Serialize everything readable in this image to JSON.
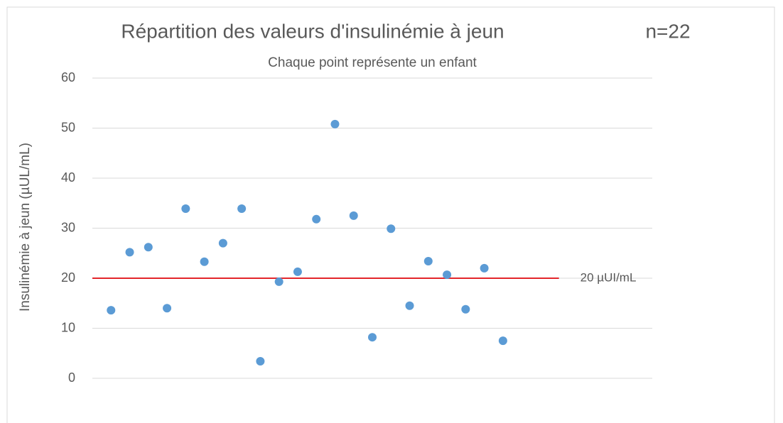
{
  "chart_data": {
    "type": "scatter",
    "title": "Répartition des valeurs d'insulinémie à jeun",
    "title_note": "n=22",
    "subtitle": "Chaque point représente un enfant",
    "y_label": "Insulinémie à jeun (µUL/mL)",
    "x": [
      1,
      2,
      3,
      4,
      5,
      6,
      7,
      8,
      9,
      10,
      11,
      12,
      13,
      14,
      15,
      16,
      17,
      18,
      19,
      20,
      21,
      22
    ],
    "series": [
      {
        "color": "#5b9bd5",
        "values": [
          13.6,
          25.2,
          26.2,
          14.0,
          33.9,
          23.3,
          27.0,
          33.9,
          3.4,
          19.3,
          21.3,
          31.8,
          50.8,
          32.5,
          8.2,
          29.9,
          14.5,
          23.4,
          20.7,
          13.8,
          22.0,
          7.5
        ]
      }
    ],
    "xlim": [
      0,
      30
    ],
    "ylim": [
      0,
      60
    ],
    "yticks": [
      0,
      10,
      20,
      30,
      40,
      50,
      60
    ],
    "grid": true,
    "reference_line": {
      "y": 20,
      "x": [
        0,
        25
      ],
      "label": "20 µUI/mL",
      "color": "#e3262b"
    }
  }
}
